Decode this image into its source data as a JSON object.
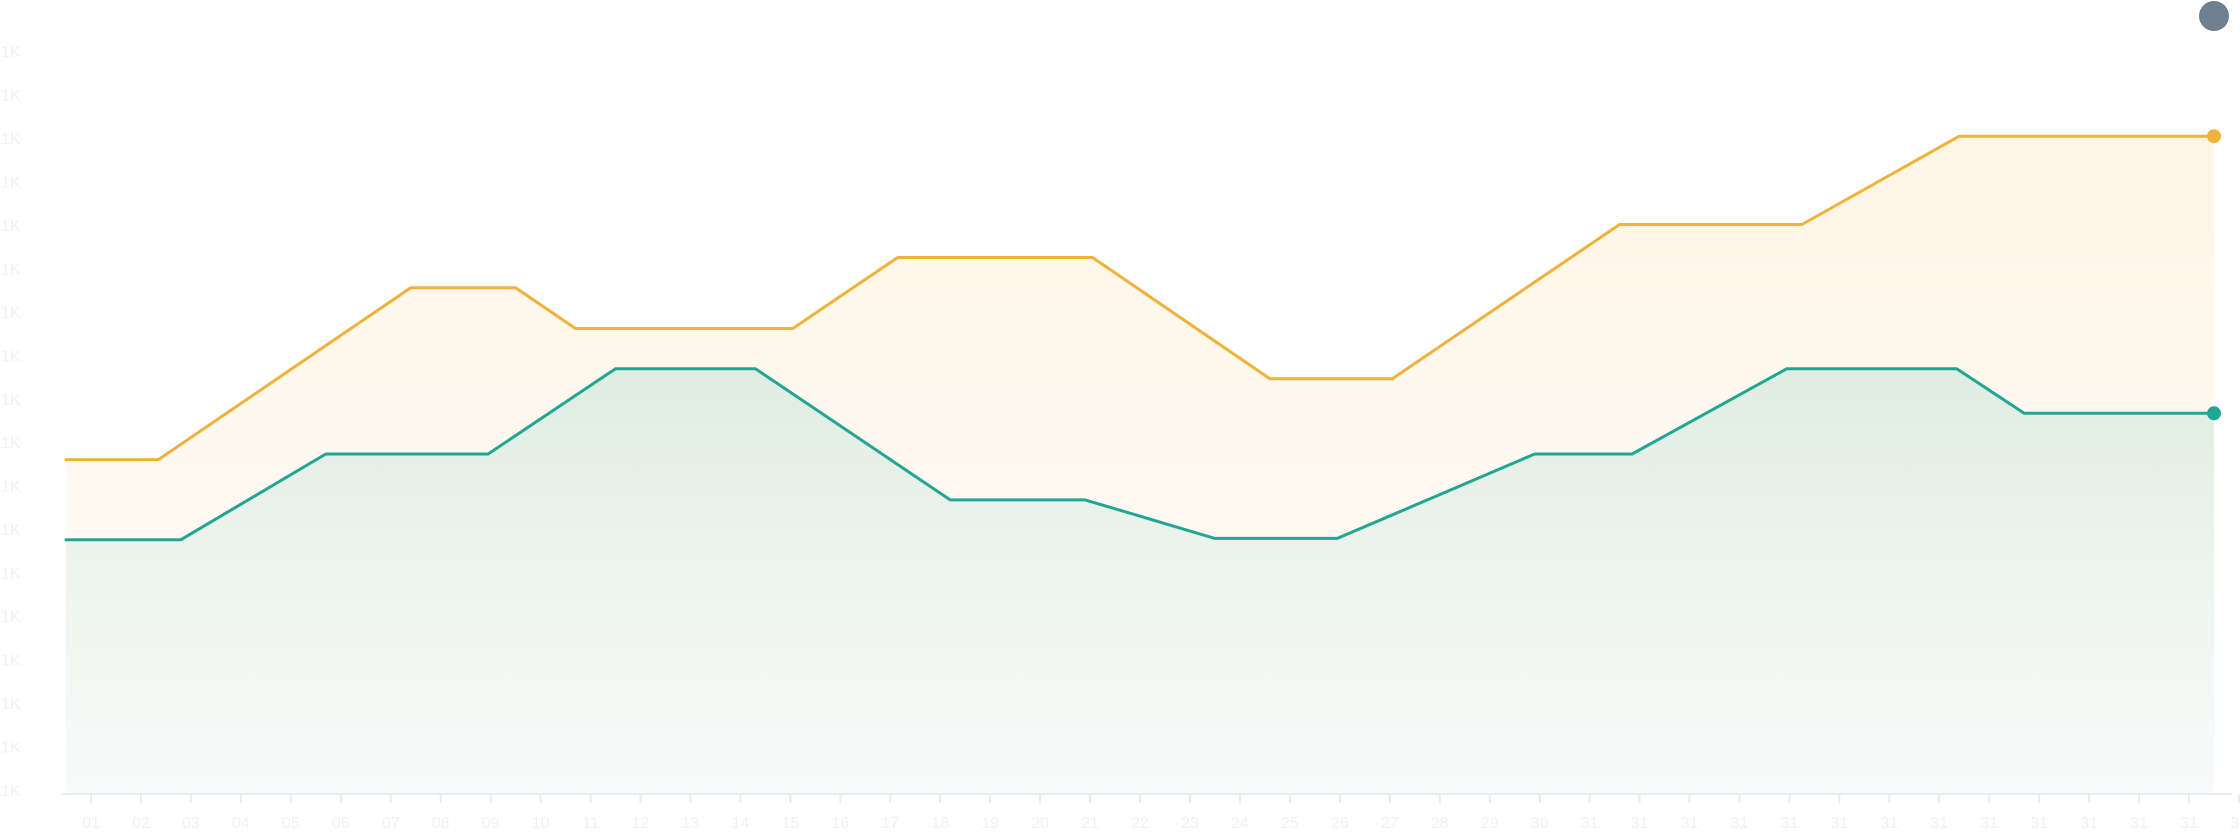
{
  "chart_data": {
    "type": "area",
    "title": "",
    "xlabel": "",
    "ylabel": "",
    "grid": false,
    "legend": "none",
    "y_tick_labels": [
      "1K",
      "1K",
      "1K",
      "1K",
      "1K",
      "1K",
      "1K",
      "1K",
      "1K",
      "1K",
      "1K",
      "1K",
      "1K",
      "1K",
      "1K",
      "1K",
      "1K",
      "1K"
    ],
    "x_tick_labels": [
      "01",
      "02",
      "03",
      "04",
      "05",
      "06",
      "07",
      "08",
      "09",
      "10",
      "11",
      "12",
      "13",
      "14",
      "15",
      "16",
      "17",
      "18",
      "19",
      "20",
      "21",
      "22",
      "23",
      "24",
      "25",
      "26",
      "27",
      "28",
      "29",
      "30",
      "31",
      "31",
      "31",
      "31",
      "31",
      "31",
      "31",
      "31",
      "31",
      "31",
      "31",
      "31",
      "31",
      "31"
    ],
    "ylim": [
      0,
      17
    ],
    "x": [
      0,
      1.85,
      6.3,
      9.55,
      10.75,
      14.4,
      17.6,
      21.8,
      25.35,
      27.8,
      33.9,
      37.55,
      40.85,
      43.0
    ],
    "series": [
      {
        "color": "#f0b23a",
        "x": [
          0,
          1.85,
          6.9,
          9.0,
          10.2,
          14.55,
          16.65,
          20.55,
          24.1,
          26.55,
          31.1,
          34.75,
          37.9,
          43.0
        ],
        "values": [
          7.7,
          7.7,
          11.67,
          11.67,
          10.73,
          10.73,
          12.37,
          12.37,
          9.57,
          9.57,
          13.13,
          13.13,
          15.17,
          15.17
        ]
      },
      {
        "color": "#22a693",
        "x": [
          0,
          2.3,
          5.2,
          8.45,
          11.0,
          13.8,
          17.7,
          20.4,
          23.0,
          25.45,
          29.4,
          31.35,
          34.45,
          37.85,
          39.2,
          43.0
        ],
        "values": [
          5.85,
          5.85,
          7.83,
          7.83,
          9.8,
          9.8,
          6.77,
          6.77,
          5.88,
          5.88,
          7.83,
          7.83,
          9.8,
          9.8,
          8.77,
          8.77
        ]
      }
    ],
    "marker": {
      "x": 43.0,
      "color": "#6e7f8d"
    }
  }
}
